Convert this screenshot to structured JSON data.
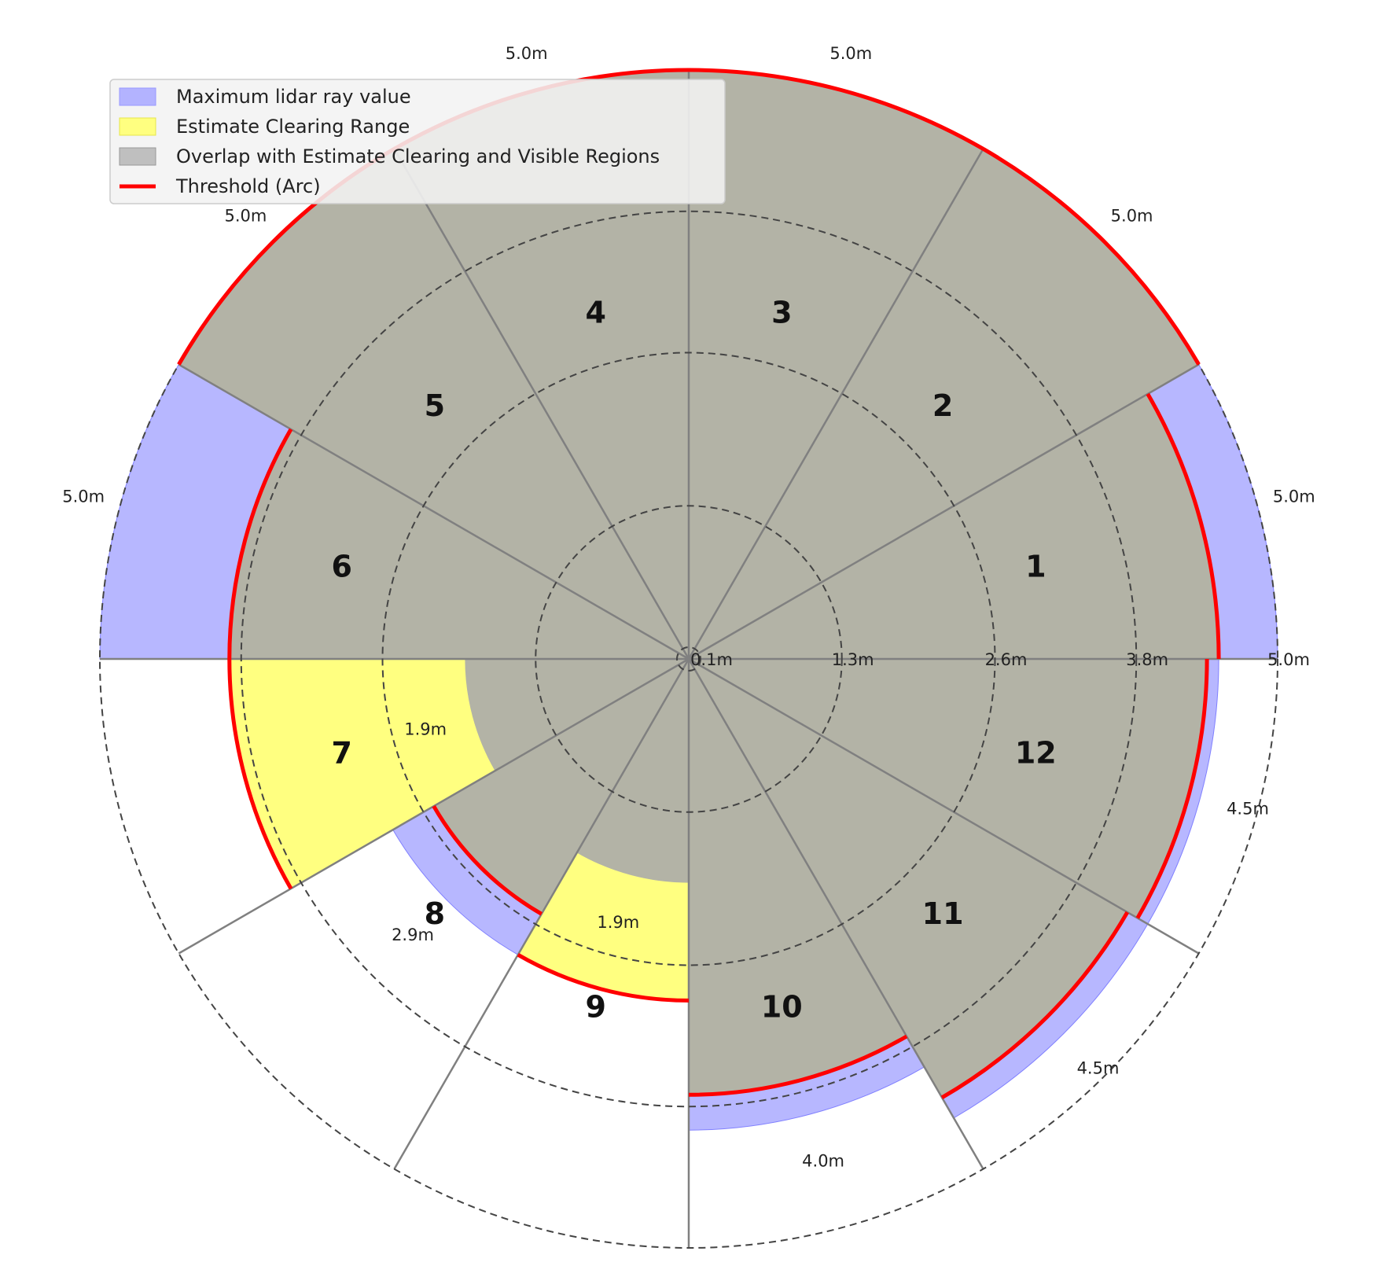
{
  "chart_data": {
    "type": "polar-bar",
    "title": "",
    "unit": "m",
    "sector_count": 12,
    "sectors": [
      {
        "id": "1",
        "max_lidar": 5.0,
        "estimate_clearing": 4.5,
        "overlap": 4.5,
        "threshold": 4.5,
        "max_label": "5.0m"
      },
      {
        "id": "2",
        "max_lidar": 5.0,
        "estimate_clearing": 5.0,
        "overlap": 5.0,
        "threshold": 5.0,
        "max_label": "5.0m"
      },
      {
        "id": "3",
        "max_lidar": 5.0,
        "estimate_clearing": 5.0,
        "overlap": 5.0,
        "threshold": 5.0,
        "max_label": "5.0m"
      },
      {
        "id": "4",
        "max_lidar": 5.0,
        "estimate_clearing": 5.0,
        "overlap": 5.0,
        "threshold": 5.0,
        "max_label": "5.0m"
      },
      {
        "id": "5",
        "max_lidar": 5.0,
        "estimate_clearing": 5.0,
        "overlap": 5.0,
        "threshold": 5.0,
        "max_label": "5.0m"
      },
      {
        "id": "6",
        "max_lidar": 5.0,
        "estimate_clearing": 3.9,
        "overlap": 3.9,
        "threshold": 3.9,
        "max_label": "5.0m"
      },
      {
        "id": "7",
        "max_lidar": 1.9,
        "estimate_clearing": 3.9,
        "overlap": 1.9,
        "threshold": 3.9,
        "max_label": "1.9m"
      },
      {
        "id": "8",
        "max_lidar": 2.9,
        "estimate_clearing": 2.5,
        "overlap": 2.5,
        "threshold": 2.5,
        "max_label": "2.9m"
      },
      {
        "id": "9",
        "max_lidar": 1.9,
        "estimate_clearing": 2.9,
        "overlap": 1.9,
        "threshold": 2.9,
        "max_label": "1.9m"
      },
      {
        "id": "10",
        "max_lidar": 4.0,
        "estimate_clearing": 3.7,
        "overlap": 3.7,
        "threshold": 3.7,
        "max_label": "4.0m"
      },
      {
        "id": "11",
        "max_lidar": 4.5,
        "estimate_clearing": 4.3,
        "overlap": 4.3,
        "threshold": 4.3,
        "max_label": "4.5m"
      },
      {
        "id": "12",
        "max_lidar": 4.5,
        "estimate_clearing": 4.4,
        "overlap": 4.4,
        "threshold": 4.4,
        "max_label": "4.5m"
      }
    ],
    "radial_ticks": [
      0.1,
      1.3,
      2.6,
      3.8,
      5.0
    ],
    "radial_tick_labels": [
      "0.1m",
      "1.3m",
      "2.6m",
      "3.8m",
      "5.0m"
    ],
    "rlim": [
      0,
      5.0
    ],
    "grid": true,
    "legend": {
      "placement": "top-left",
      "entries": [
        {
          "label": "Maximum lidar ray value",
          "color": "#9999ff"
        },
        {
          "label": "Estimate Clearing Range",
          "color": "#ffff66"
        },
        {
          "label": "Overlap with Estimate Clearing and Visible Regions",
          "color": "#aaaaaa"
        },
        {
          "label": "Threshold (Arc)",
          "color": "#ff0000"
        }
      ]
    },
    "colors": {
      "max_lidar": "#b3b3ff",
      "estimate": "#ffff80",
      "overlap": "#b3b3a6",
      "threshold": "#ff0000",
      "grid": "#444444",
      "spoke": "#808080"
    }
  }
}
